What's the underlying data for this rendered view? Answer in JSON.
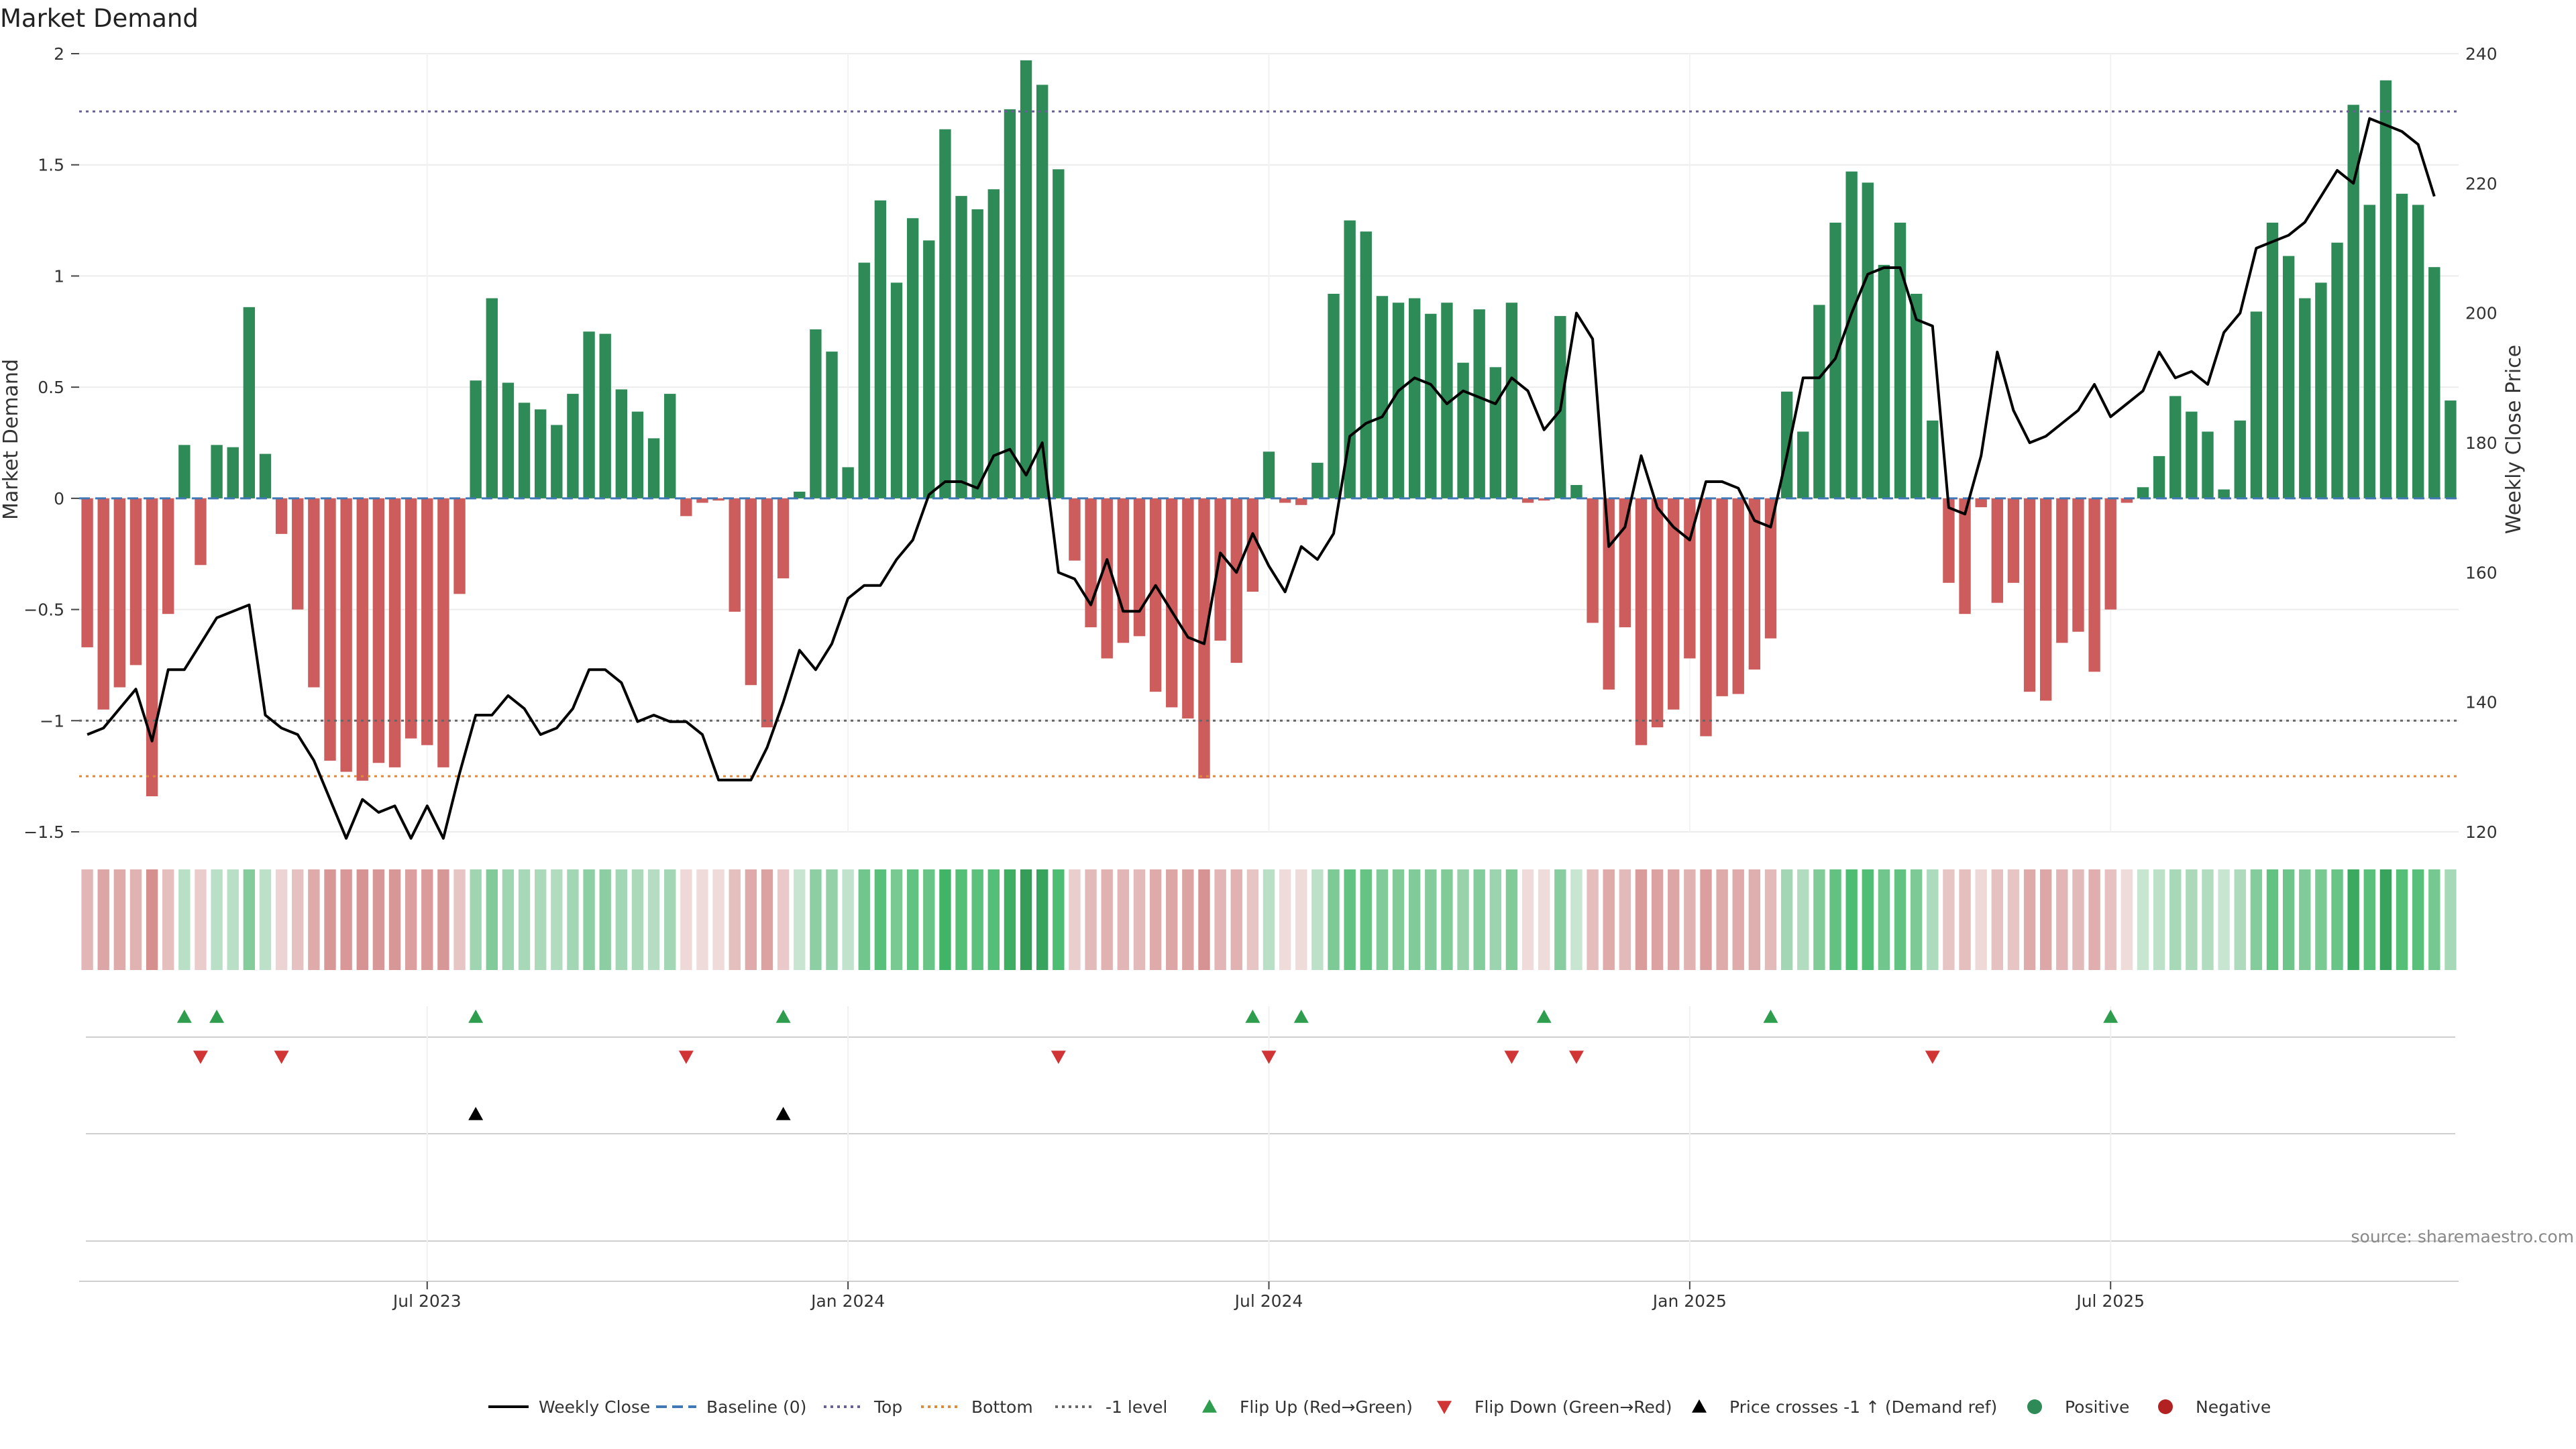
{
  "chart_data": {
    "type": "bar",
    "title": "Market Demand",
    "ylabel": "Market Demand",
    "y2label": "Weekly Close Price",
    "ylim": [
      -1.5,
      2.0
    ],
    "y2lim": [
      120,
      240
    ],
    "yticks": [
      "2",
      "1.5",
      "1",
      "0.5",
      "0",
      "−0.5",
      "−1",
      "−1.5"
    ],
    "y2ticks": [
      "240",
      "220",
      "200",
      "180",
      "160",
      "140",
      "120"
    ],
    "xtick_labels": [
      "Jul 2023",
      "Jan 2024",
      "Jul 2024",
      "Jan 2025",
      "Jul 2025"
    ],
    "xtick_weeks": [
      21,
      47,
      73,
      99,
      125
    ],
    "reference_lines": {
      "top": 1.74,
      "minus_one": -1.0,
      "bottom": -1.25,
      "baseline": 0
    },
    "demand": [
      -0.67,
      -0.95,
      -0.85,
      -0.75,
      -1.34,
      -0.52,
      0.24,
      -0.3,
      0.24,
      0.23,
      0.86,
      0.2,
      -0.16,
      -0.5,
      -0.85,
      -1.18,
      -1.23,
      -1.27,
      -1.19,
      -1.21,
      -1.08,
      -1.11,
      -1.21,
      -0.43,
      0.53,
      0.9,
      0.52,
      0.43,
      0.4,
      0.33,
      0.47,
      0.75,
      0.74,
      0.49,
      0.39,
      0.27,
      0.47,
      -0.08,
      -0.02,
      -0.01,
      -0.51,
      -0.84,
      -1.03,
      -0.36,
      0.03,
      0.76,
      0.66,
      0.14,
      1.06,
      1.34,
      0.97,
      1.26,
      1.16,
      1.66,
      1.36,
      1.3,
      1.39,
      1.75,
      1.97,
      1.86,
      1.48,
      -0.28,
      -0.58,
      -0.72,
      -0.65,
      -0.62,
      -0.87,
      -0.94,
      -0.99,
      -1.26,
      -0.64,
      -0.74,
      -0.42,
      0.21,
      -0.02,
      -0.03,
      0.16,
      0.92,
      1.25,
      1.2,
      0.91,
      0.88,
      0.9,
      0.83,
      0.88,
      0.61,
      0.85,
      0.59,
      0.88,
      -0.02,
      -0.01,
      0.82,
      0.06,
      -0.56,
      -0.86,
      -0.58,
      -1.11,
      -1.03,
      -0.95,
      -0.72,
      -1.07,
      -0.89,
      -0.88,
      -0.77,
      -0.63,
      0.48,
      0.3,
      0.87,
      1.24,
      1.47,
      1.42,
      1.05,
      1.24,
      0.92,
      0.35,
      -0.38,
      -0.52,
      -0.04,
      -0.47,
      -0.38,
      -0.87,
      -0.91,
      -0.65,
      -0.6,
      -0.78,
      -0.5,
      -0.02,
      0.05,
      0.19,
      0.46,
      0.39,
      0.3,
      0.04,
      0.35,
      0.84,
      1.24,
      1.09,
      0.9,
      0.97,
      1.15,
      1.77,
      1.32,
      1.88,
      1.37,
      1.32,
      1.04,
      0.44
    ],
    "price": [
      135,
      136,
      139,
      142,
      134,
      145,
      145,
      149,
      153,
      154,
      155,
      138,
      136,
      135,
      131,
      125,
      119,
      125,
      123,
      124,
      119,
      124,
      119,
      129,
      138,
      138,
      141,
      139,
      135,
      136,
      139,
      145,
      145,
      143,
      137,
      138,
      137,
      137,
      135,
      128,
      128,
      128,
      133,
      140,
      148,
      145,
      149,
      156,
      158,
      158,
      162,
      165,
      172,
      174,
      174,
      173,
      178,
      179,
      175,
      180,
      160,
      159,
      155,
      162,
      154,
      154,
      158,
      154,
      150,
      149,
      163,
      160,
      166,
      161,
      157,
      164,
      162,
      166,
      181,
      183,
      184,
      188,
      190,
      189,
      186,
      188,
      187,
      186,
      190,
      188,
      182,
      185,
      200,
      196,
      164,
      167,
      178,
      170,
      167,
      165,
      174,
      174,
      173,
      168,
      167,
      178,
      190,
      190,
      193,
      200,
      206,
      207,
      207,
      199,
      198,
      170,
      169,
      178,
      194,
      185,
      180,
      181,
      183,
      185,
      189,
      184,
      186,
      188,
      194,
      190,
      191,
      189,
      197,
      200,
      210,
      211,
      212,
      214,
      218,
      222,
      220,
      230,
      229,
      228,
      226,
      218
    ],
    "flip_up_weeks": [
      6,
      8,
      24,
      43,
      72,
      75,
      90,
      104,
      125
    ],
    "flip_down_weeks": [
      7,
      12,
      37,
      60,
      73,
      88,
      92,
      114
    ],
    "price_cross_weeks": [
      24,
      43
    ],
    "legend": [
      {
        "label": "Weekly Close",
        "kind": "line-solid",
        "color": "#000000"
      },
      {
        "label": "Baseline (0)",
        "kind": "line-dash",
        "color": "#3f78b5"
      },
      {
        "label": "Top",
        "kind": "line-dot",
        "color": "#6a5f95"
      },
      {
        "label": "Bottom",
        "kind": "line-dot",
        "color": "#e0893a"
      },
      {
        "label": "-1 level",
        "kind": "line-dot",
        "color": "#666666"
      },
      {
        "label": "Flip Up (Red→Green)",
        "kind": "tri-up",
        "color": "#2e9e4e"
      },
      {
        "label": "Flip Down (Green→Red)",
        "kind": "tri-down",
        "color": "#d13434"
      },
      {
        "label": "Price crosses -1 ↑ (Demand ref)",
        "kind": "tri-up",
        "color": "#000000"
      },
      {
        "label": "Positive",
        "kind": "dot",
        "color": "#2e8b57"
      },
      {
        "label": "Negative",
        "kind": "dot",
        "color": "#b22222"
      }
    ],
    "colors": {
      "positive": "#2e8b57",
      "negative": "#cd5c5c"
    }
  },
  "source": "source: sharemaestro.com"
}
